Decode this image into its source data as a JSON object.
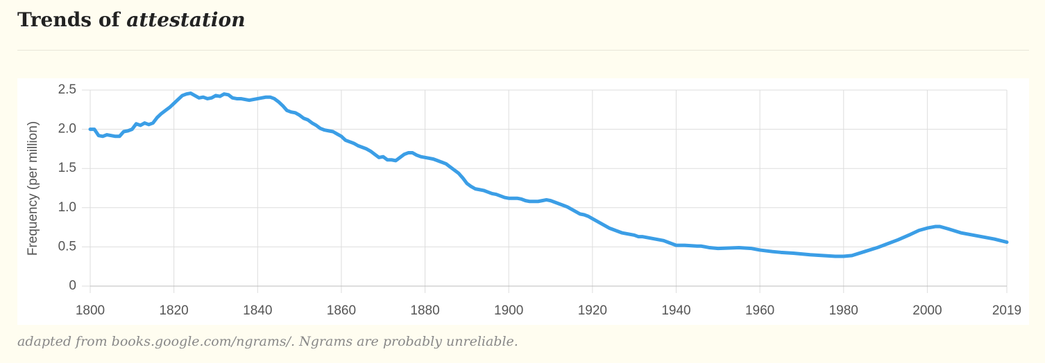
{
  "chart_data": {
    "type": "line",
    "title": "Trends of",
    "title_emphasis": "attestation",
    "y_label": "Frequency (per million)",
    "caption": "adapted from books.google.com/ngrams/. Ngrams are probably unreliable.",
    "grid": true,
    "x": [
      1800,
      1801,
      1802,
      1803,
      1804,
      1805,
      1806,
      1807,
      1808,
      1809,
      1810,
      1811,
      1812,
      1813,
      1814,
      1815,
      1816,
      1817,
      1818,
      1819,
      1820,
      1821,
      1822,
      1823,
      1824,
      1825,
      1826,
      1827,
      1828,
      1829,
      1830,
      1831,
      1832,
      1833,
      1834,
      1835,
      1836,
      1837,
      1838,
      1839,
      1840,
      1841,
      1842,
      1843,
      1844,
      1845,
      1846,
      1847,
      1848,
      1849,
      1850,
      1851,
      1852,
      1853,
      1854,
      1855,
      1856,
      1857,
      1858,
      1859,
      1860,
      1861,
      1862,
      1863,
      1864,
      1865,
      1866,
      1867,
      1868,
      1869,
      1870,
      1871,
      1872,
      1873,
      1874,
      1875,
      1876,
      1877,
      1878,
      1879,
      1880,
      1881,
      1882,
      1883,
      1884,
      1885,
      1886,
      1887,
      1888,
      1889,
      1890,
      1891,
      1892,
      1893,
      1894,
      1895,
      1896,
      1897,
      1898,
      1899,
      1900,
      1901,
      1902,
      1903,
      1904,
      1905,
      1906,
      1907,
      1908,
      1909,
      1910,
      1911,
      1912,
      1913,
      1914,
      1915,
      1916,
      1917,
      1918,
      1919,
      1920,
      1921,
      1922,
      1923,
      1924,
      1925,
      1926,
      1927,
      1928,
      1929,
      1930,
      1931,
      1932,
      1933,
      1934,
      1935,
      1936,
      1937,
      1938,
      1939,
      1940,
      1942,
      1945,
      1946,
      1948,
      1950,
      1955,
      1958,
      1960,
      1963,
      1965,
      1968,
      1970,
      1972,
      1975,
      1978,
      1980,
      1982,
      1985,
      1988,
      1990,
      1993,
      1996,
      1998,
      2000,
      2002,
      2003,
      2005,
      2008,
      2010,
      2013,
      2016,
      2019
    ],
    "series": [
      {
        "name": "attestation",
        "color": "#3b9ee6",
        "values": [
          2.0,
          2.0,
          1.92,
          1.91,
          1.93,
          1.92,
          1.91,
          1.91,
          1.97,
          1.98,
          2.0,
          2.07,
          2.05,
          2.08,
          2.06,
          2.08,
          2.15,
          2.2,
          2.24,
          2.28,
          2.33,
          2.38,
          2.43,
          2.45,
          2.46,
          2.43,
          2.4,
          2.41,
          2.39,
          2.4,
          2.43,
          2.42,
          2.45,
          2.44,
          2.4,
          2.39,
          2.39,
          2.38,
          2.37,
          2.38,
          2.39,
          2.4,
          2.41,
          2.41,
          2.39,
          2.35,
          2.3,
          2.24,
          2.22,
          2.21,
          2.18,
          2.14,
          2.12,
          2.08,
          2.05,
          2.01,
          1.99,
          1.98,
          1.97,
          1.94,
          1.91,
          1.86,
          1.84,
          1.82,
          1.79,
          1.77,
          1.75,
          1.72,
          1.68,
          1.64,
          1.65,
          1.61,
          1.61,
          1.6,
          1.64,
          1.68,
          1.7,
          1.7,
          1.67,
          1.65,
          1.64,
          1.63,
          1.62,
          1.6,
          1.58,
          1.56,
          1.52,
          1.48,
          1.44,
          1.38,
          1.31,
          1.27,
          1.24,
          1.23,
          1.22,
          1.2,
          1.18,
          1.17,
          1.15,
          1.13,
          1.12,
          1.12,
          1.12,
          1.11,
          1.09,
          1.08,
          1.08,
          1.08,
          1.09,
          1.1,
          1.09,
          1.07,
          1.05,
          1.03,
          1.01,
          0.98,
          0.95,
          0.92,
          0.91,
          0.89,
          0.86,
          0.83,
          0.8,
          0.77,
          0.74,
          0.72,
          0.7,
          0.68,
          0.67,
          0.66,
          0.65,
          0.63,
          0.63,
          0.62,
          0.61,
          0.6,
          0.59,
          0.58,
          0.56,
          0.54,
          0.52,
          0.52,
          0.51,
          0.51,
          0.49,
          0.48,
          0.49,
          0.48,
          0.46,
          0.44,
          0.43,
          0.42,
          0.41,
          0.4,
          0.39,
          0.38,
          0.38,
          0.39,
          0.44,
          0.49,
          0.53,
          0.59,
          0.66,
          0.71,
          0.74,
          0.76,
          0.76,
          0.73,
          0.68,
          0.66,
          0.63,
          0.6,
          0.56
        ]
      }
    ],
    "xlim": [
      1800,
      2019
    ],
    "xticks": [
      1800,
      1820,
      1840,
      1860,
      1880,
      1900,
      1920,
      1940,
      1960,
      1980,
      2000,
      2019
    ],
    "ylim": [
      0,
      2.5
    ],
    "yticks": [
      0,
      0.5,
      {
        "value": 1,
        "label": "1.0"
      },
      1.5,
      {
        "value": 2,
        "label": "2.0"
      },
      2.5
    ]
  }
}
